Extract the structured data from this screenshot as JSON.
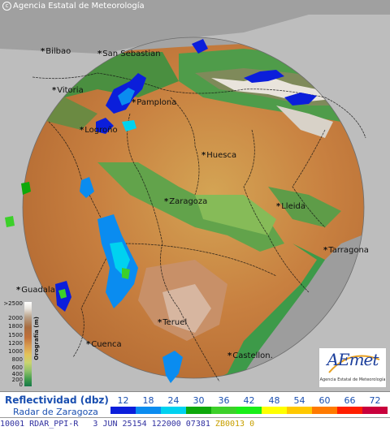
{
  "copyright": "Agencia Estatal de Meteorología",
  "cities": [
    {
      "key": "bilbao",
      "label": "Bilbao"
    },
    {
      "key": "san_sebastian",
      "label": "San Sebastian"
    },
    {
      "key": "vitoria",
      "label": "Vitoria"
    },
    {
      "key": "pamplona",
      "label": "Pamplona"
    },
    {
      "key": "logrono",
      "label": "Logroño"
    },
    {
      "key": "huesca",
      "label": "Huesca"
    },
    {
      "key": "zaragoza",
      "label": "Zaragoza"
    },
    {
      "key": "lleida",
      "label": "Lleida"
    },
    {
      "key": "tarragona",
      "label": "Tarragona"
    },
    {
      "key": "guadalajara",
      "label": "Guadala"
    },
    {
      "key": "teruel",
      "label": "Teruel"
    },
    {
      "key": "cuenca",
      "label": "Cuenca"
    },
    {
      "key": "castellon",
      "label": "Castellon."
    }
  ],
  "orography": {
    "label": "Orografía (m)",
    "ticks": [
      ">2500",
      "2000",
      "1800",
      "1500",
      "1200",
      "1000",
      "800",
      "600",
      "400",
      "200",
      "0"
    ]
  },
  "logo": {
    "text": "AEmet",
    "subtitle": "Agencia Estatal de Meteorología"
  },
  "legend": {
    "title": "Reflectividad (dbz)",
    "subtitle": "Radar de Zaragoza",
    "values": [
      "12",
      "18",
      "24",
      "30",
      "36",
      "42",
      "48",
      "54",
      "60",
      "66",
      "72"
    ],
    "colors": [
      "#0b1edb",
      "#0a8cf0",
      "#00d2f0",
      "#0ea80a",
      "#3cd02a",
      "#18ee18",
      "#ffff00",
      "#ffc800",
      "#ff7a00",
      "#ff1e00",
      "#c8003c"
    ]
  },
  "status": {
    "prefix": "1",
    "text": "0001 RDAR_PPI-R   3 JUN 25154 122000 07381 ",
    "suffix": "ZB0013 0"
  }
}
